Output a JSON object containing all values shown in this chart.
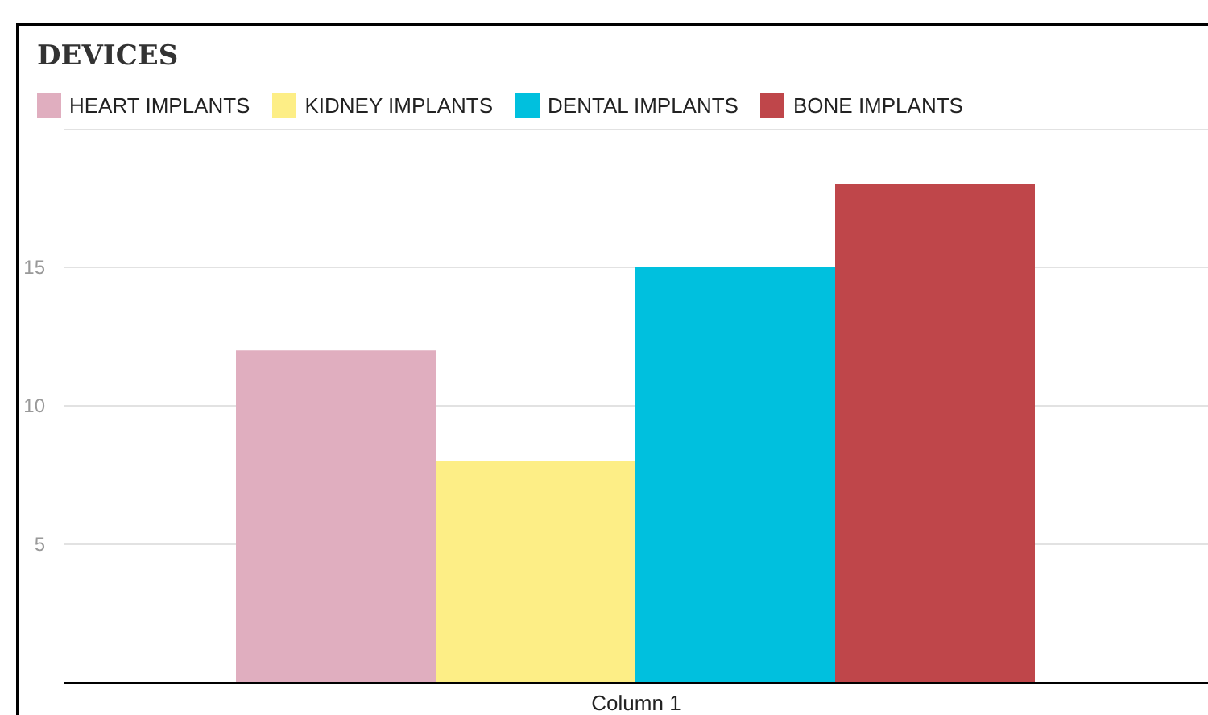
{
  "chart_data": {
    "type": "bar",
    "title": "DEVICES",
    "categories": [
      "Column 1"
    ],
    "series": [
      {
        "name": "HEART IMPLANTS",
        "color": "#e0aebf",
        "values": [
          12
        ]
      },
      {
        "name": "KIDNEY IMPLANTS",
        "color": "#fdee86",
        "values": [
          8
        ]
      },
      {
        "name": "DENTAL IMPLANTS",
        "color": "#00c0de",
        "values": [
          15
        ]
      },
      {
        "name": "BONE IMPLANTS",
        "color": "#bf464a",
        "values": [
          18
        ]
      }
    ],
    "ylim": [
      0,
      20
    ],
    "yticks": [
      {
        "value": 0,
        "label": null
      },
      5,
      10,
      15
    ],
    "grid": "y",
    "legend": "top left"
  }
}
